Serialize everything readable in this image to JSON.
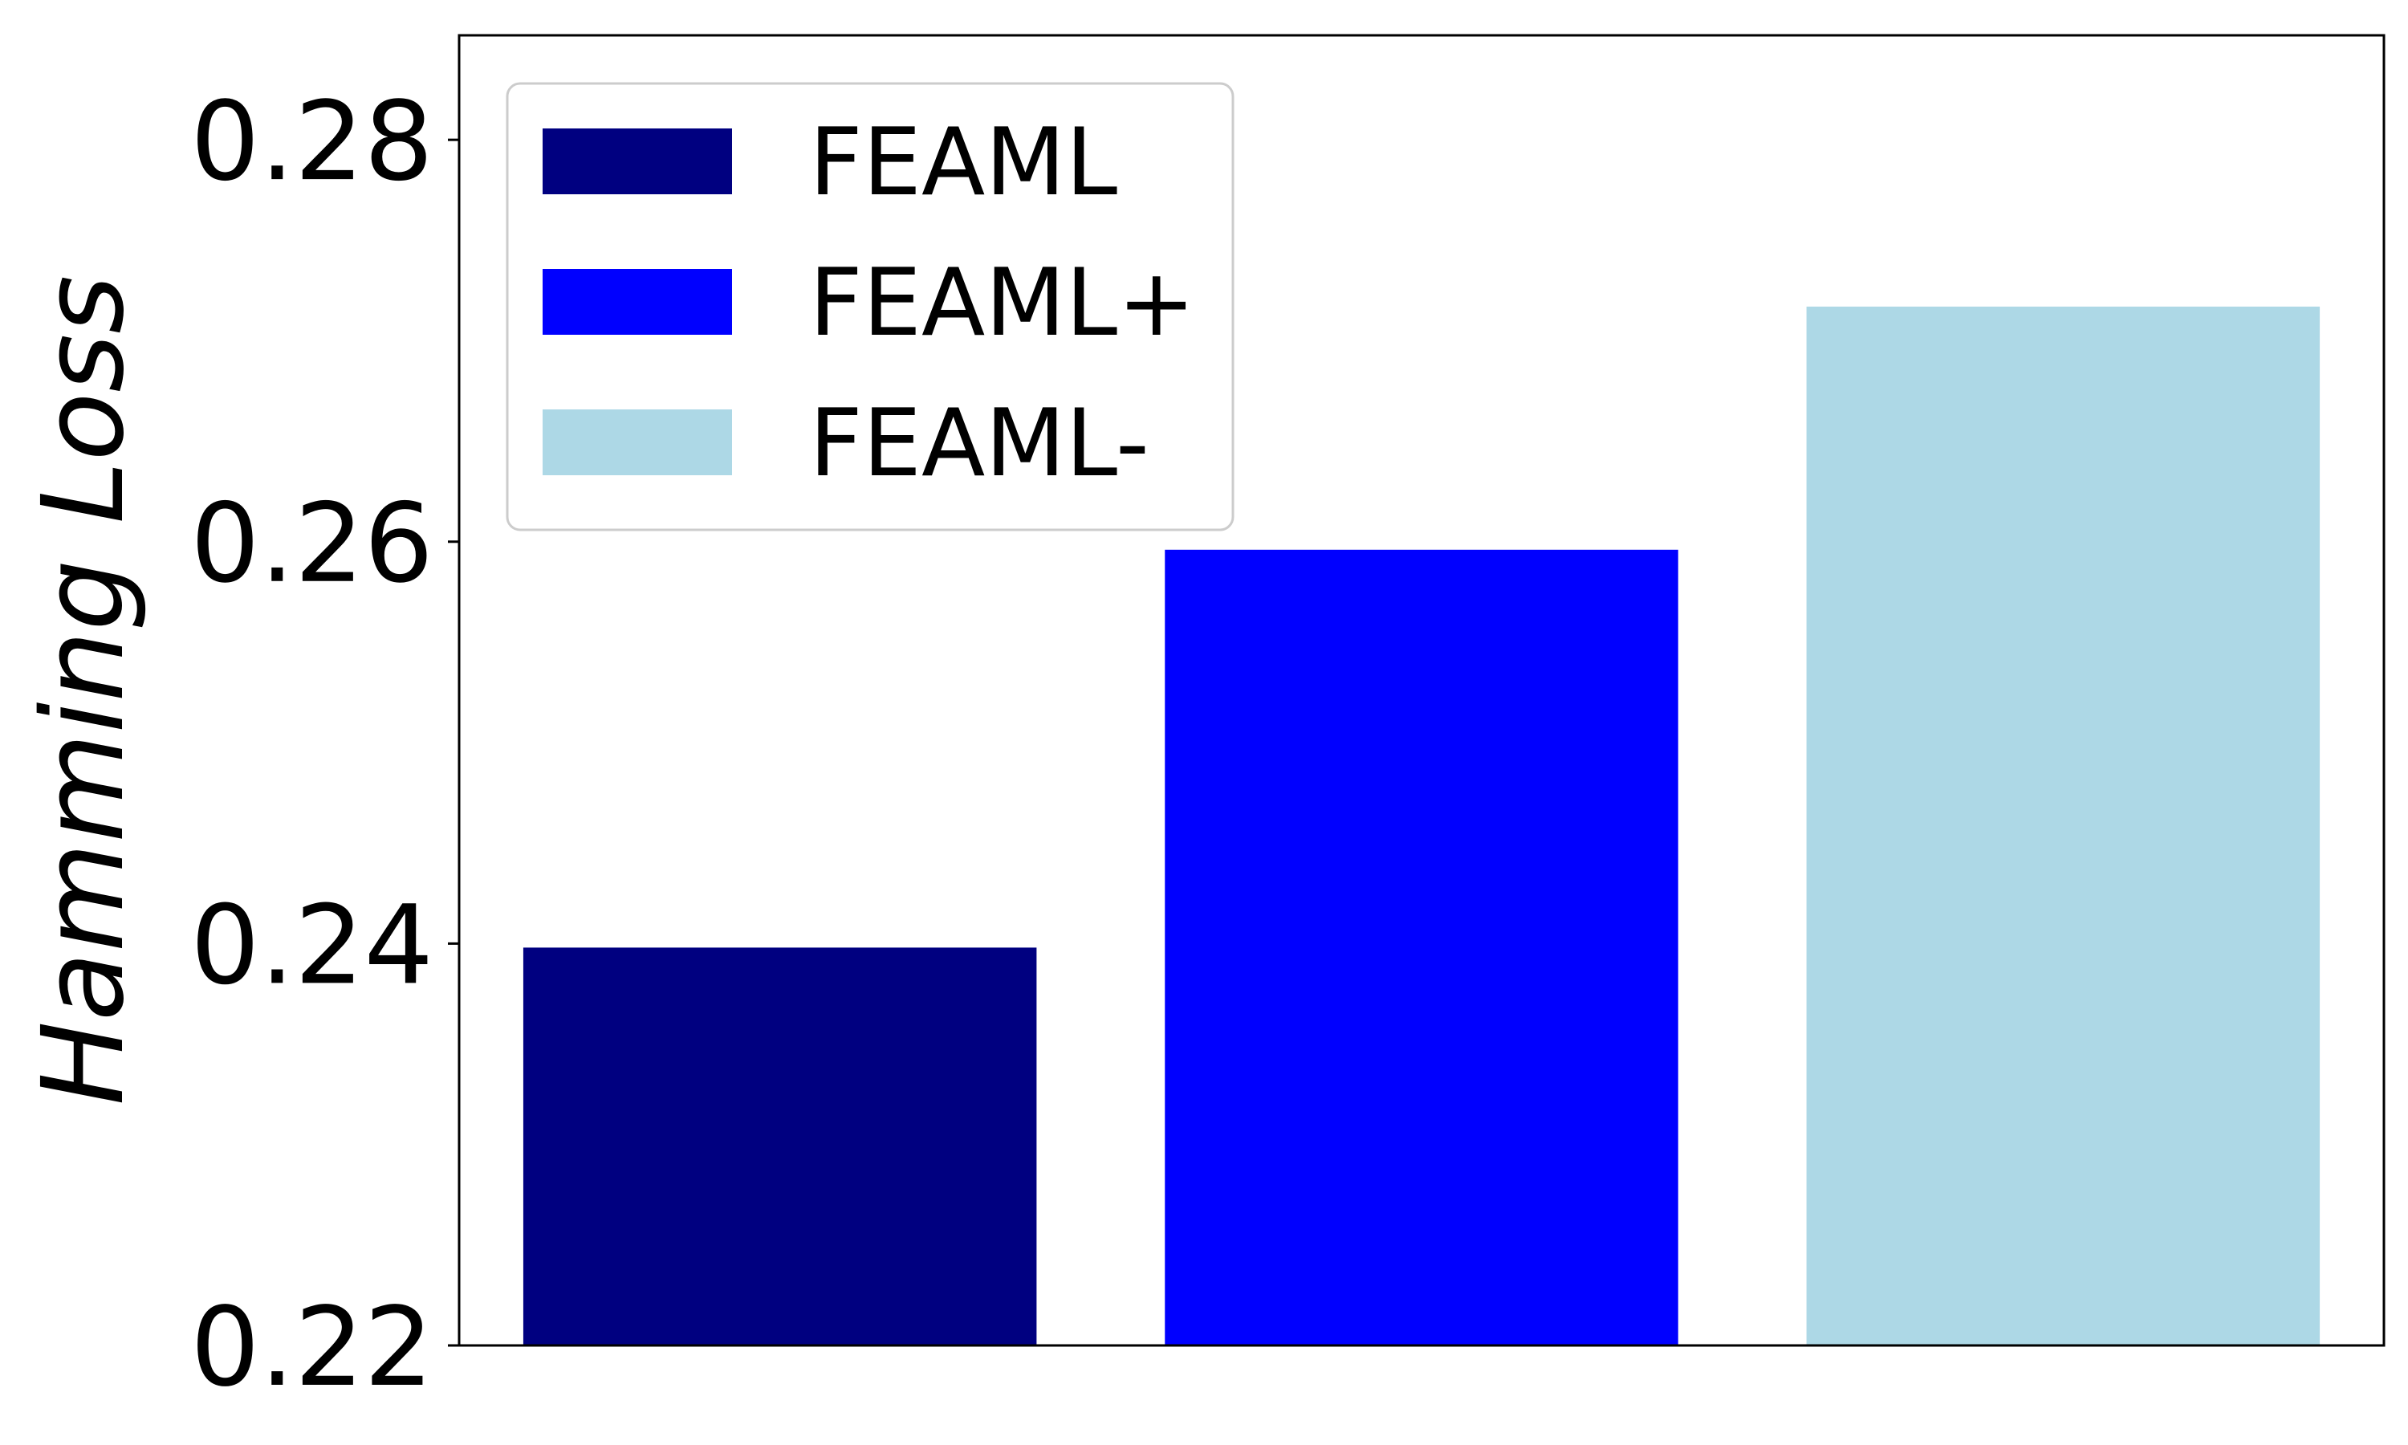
{
  "chart_data": {
    "type": "bar",
    "title": "",
    "xlabel": "",
    "ylabel": "Hamming Loss",
    "ylim": [
      0.22,
      0.2852
    ],
    "yticks": [
      0.22,
      0.24,
      0.26,
      0.28
    ],
    "ytick_labels": [
      "0.22",
      "0.24",
      "0.26",
      "0.28"
    ],
    "grid": false,
    "legend_position": "top-left",
    "series": [
      {
        "name": "FEAML",
        "value": 0.2398,
        "color": "#000080"
      },
      {
        "name": "FEAML+",
        "value": 0.2596,
        "color": "#0000ff"
      },
      {
        "name": "FEAML-",
        "value": 0.2717,
        "color": "#add8e6"
      }
    ]
  }
}
